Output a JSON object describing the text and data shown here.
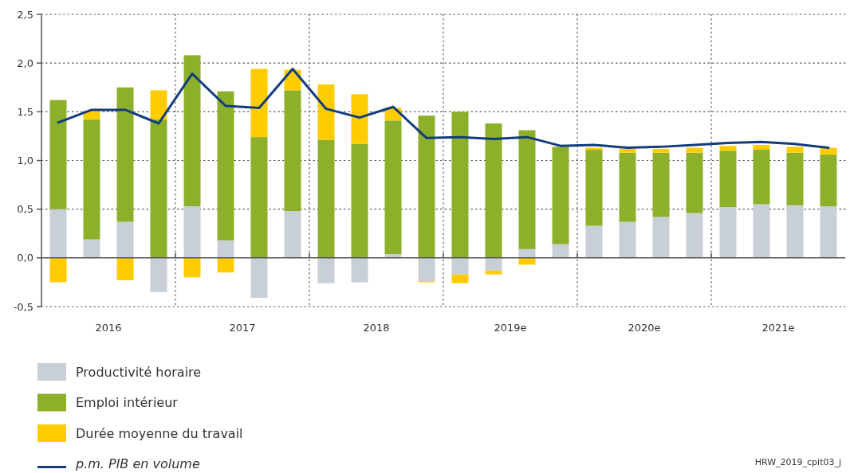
{
  "chart_data": {
    "type": "bar",
    "stacked": true,
    "x": [
      2016.125,
      2016.375,
      2016.625,
      2016.875,
      2017.125,
      2017.375,
      2017.625,
      2017.875,
      2018.125,
      2018.375,
      2018.625,
      2018.875,
      2019.125,
      2019.375,
      2019.625,
      2019.875,
      2020.125,
      2020.375,
      2020.625,
      2020.875,
      2021.125,
      2021.375,
      2021.625,
      2021.875
    ],
    "xlim": [
      2016,
      2022
    ],
    "xticks": [
      {
        "value": 2016.5,
        "label": "2016"
      },
      {
        "value": 2017,
        "label": null
      },
      {
        "value": 2017.5,
        "label": "2017"
      },
      {
        "value": 2018,
        "label": null
      },
      {
        "value": 2018.5,
        "label": "2018"
      },
      {
        "value": 2019,
        "label": null
      },
      {
        "value": 2019.5,
        "label": "2019e"
      },
      {
        "value": 2020,
        "label": null
      },
      {
        "value": 2020.5,
        "label": "2020e"
      },
      {
        "value": 2021,
        "label": null
      },
      {
        "value": 2021.5,
        "label": "2021e"
      }
    ],
    "ylim": [
      -0.5,
      2.5
    ],
    "yticks": [
      {
        "value": -0.5,
        "label": "-0,5"
      },
      {
        "value": 0,
        "label": "0,0"
      },
      {
        "value": 0.5,
        "label": "0,5"
      },
      {
        "value": 1,
        "label": "1,0"
      },
      {
        "value": 1.5,
        "label": "1,5"
      },
      {
        "value": 2,
        "label": "2,0"
      },
      {
        "value": 2.5,
        "label": "2,5"
      }
    ],
    "grid": true,
    "legend": "bottom",
    "series": [
      {
        "name": "Productivité horaire",
        "color": "#c9cfd6",
        "values": [
          0.5,
          0.19,
          0.37,
          -0.35,
          0.53,
          0.18,
          -0.41,
          0.48,
          -0.26,
          -0.25,
          0.04,
          -0.24,
          -0.17,
          -0.13,
          0.09,
          0.14,
          0.33,
          0.37,
          0.42,
          0.46,
          0.52,
          0.55,
          0.54,
          0.53
        ]
      },
      {
        "name": "Emploi intérieur",
        "color": "#8cb02a",
        "values": [
          1.12,
          1.23,
          1.38,
          1.42,
          1.55,
          1.53,
          1.24,
          1.24,
          1.21,
          1.17,
          1.37,
          1.46,
          1.5,
          1.38,
          1.22,
          1.0,
          0.78,
          0.71,
          0.66,
          0.62,
          0.58,
          0.56,
          0.54,
          0.53
        ]
      },
      {
        "name": "Durée moyenne du travail",
        "color": "#ffcc00",
        "values": [
          -0.25,
          0.09,
          -0.23,
          0.3,
          -0.2,
          -0.15,
          0.7,
          0.21,
          0.57,
          0.51,
          0.13,
          -0.01,
          -0.09,
          -0.04,
          -0.07,
          null,
          0.02,
          0.04,
          0.04,
          0.05,
          0.05,
          0.05,
          0.06,
          0.07
        ]
      },
      {
        "name": "p.m. PIB en volume",
        "type": "line",
        "color": "#123c7c",
        "values": [
          1.39,
          1.52,
          1.52,
          1.38,
          1.89,
          1.56,
          1.54,
          1.94,
          1.53,
          1.44,
          1.55,
          1.23,
          1.24,
          1.22,
          1.24,
          1.15,
          1.16,
          1.13,
          1.14,
          1.16,
          1.18,
          1.19,
          1.17,
          1.13
        ]
      }
    ],
    "annotations": [
      "HRW_2019_cpit03_j"
    ]
  }
}
